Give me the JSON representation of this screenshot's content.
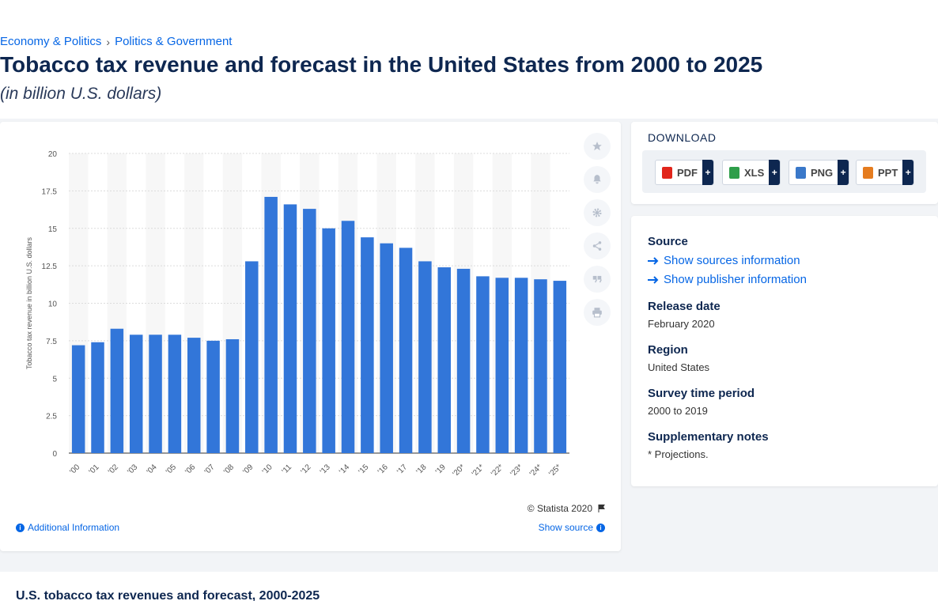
{
  "breadcrumb": {
    "item1": "Economy & Politics",
    "separator": "›",
    "item2": "Politics & Government"
  },
  "title": "Tobacco tax revenue and forecast in the United States from 2000 to 2025",
  "subtitle": "(in billion U.S. dollars)",
  "toolbar_icons": [
    "star-icon",
    "bell-icon",
    "gear-icon",
    "share-icon",
    "quote-icon",
    "print-icon"
  ],
  "chart_footer": {
    "copyright": "© Statista 2020",
    "additional_info": "Additional Information",
    "show_source": "Show source"
  },
  "download": {
    "title": "DOWNLOAD",
    "buttons": [
      {
        "label": "PDF",
        "plus": "+",
        "color": "#e1251b"
      },
      {
        "label": "XLS",
        "plus": "+",
        "color": "#2e9e4a"
      },
      {
        "label": "PNG",
        "plus": "+",
        "color": "#3a78c9"
      },
      {
        "label": "PPT",
        "plus": "+",
        "color": "#e57c1f"
      }
    ]
  },
  "info": {
    "source_label": "Source",
    "show_sources": "Show sources information",
    "show_publisher": "Show publisher information",
    "release_label": "Release date",
    "release_value": "February 2020",
    "region_label": "Region",
    "region_value": "United States",
    "survey_label": "Survey time period",
    "survey_value": "2000 to 2019",
    "notes_label": "Supplementary notes",
    "notes_value": "* Projections."
  },
  "bottom": {
    "title": "U.S. tobacco tax revenues and forecast, 2000-2025"
  },
  "chart_data": {
    "type": "bar",
    "categories": [
      "'00",
      "'01",
      "'02",
      "'03",
      "'04",
      "'05",
      "'06",
      "'07",
      "'08",
      "'09",
      "'10",
      "'11",
      "'12",
      "'13",
      "'14",
      "'15",
      "'16",
      "'17",
      "'18",
      "'19",
      "'20*",
      "'21*",
      "'22*",
      "'23*",
      "'24*",
      "'25*"
    ],
    "values": [
      7.2,
      7.4,
      8.3,
      7.9,
      7.9,
      7.9,
      7.7,
      7.5,
      7.6,
      12.8,
      17.1,
      16.6,
      16.3,
      15.0,
      15.5,
      14.4,
      14.0,
      13.7,
      12.8,
      12.4,
      12.3,
      11.8,
      11.7,
      11.7,
      11.6,
      11.5
    ],
    "ylabel": "Tobacco tax revenue in billion U.S. dollars",
    "xlabel": "",
    "ylim": [
      0,
      20
    ],
    "yticks": [
      "0",
      "2.5",
      "5",
      "7.5",
      "10",
      "12.5",
      "15",
      "17.5",
      "20"
    ],
    "grid": true,
    "bar_color": "#3276d9"
  }
}
